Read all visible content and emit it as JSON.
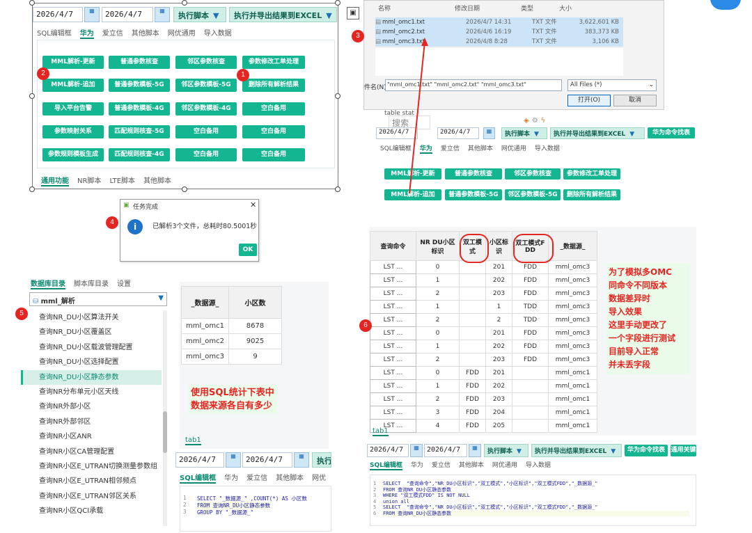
{
  "colors": {
    "accent": "#14b692",
    "badge": "#e52521",
    "note": "#e52521"
  },
  "p1": {
    "date_from": "2026/4/7",
    "date_to": "2026/4/7",
    "exec_label": "执行脚本",
    "export_label": "执行并导出结果到EXCEL",
    "tabs": [
      "SQL编辑框",
      "华为",
      "爱立信",
      "其他脚本",
      "网优通用",
      "导入数据"
    ],
    "buttons": [
      "MML解析-更新",
      "普通参数核查",
      "邻区参数核查",
      "参数修改工单处理",
      "MML解析-追加",
      "普通参数模板-5G",
      "邻区参数模板-5G",
      "删除所有解析结果",
      "导入平台告警",
      "普通参数模板-4G",
      "邻区参数模板-4G",
      "空白备用",
      "参数映射关系",
      "匹配规则核查-5G",
      "空白备用",
      "空白备用",
      "参数规则模板生成",
      "匹配规则核查-4G",
      "空白备用",
      "空白备用"
    ],
    "bottom_tabs": [
      "通用功能",
      "NR脚本",
      "LTE脚本",
      "其他脚本"
    ]
  },
  "badges": [
    "1",
    "2",
    "3",
    "4",
    "5",
    "6"
  ],
  "p3": {
    "headers": [
      "名称",
      "修改日期",
      "类型",
      "大小"
    ],
    "files": [
      {
        "name": "mml_omc1.txt",
        "date": "2026/4/7 14:31",
        "type": "TXT 文件",
        "size": "3,622,601 KB"
      },
      {
        "name": "mml_omc2.txt",
        "date": "2026/4/6 16:19",
        "type": "TXT 文件",
        "size": "383,373 KB"
      },
      {
        "name": "mml_omc3.txt",
        "date": "2026/4/8 8:28",
        "type": "TXT 文件",
        "size": "3,106 KB"
      }
    ],
    "filename_label": "件名(N):",
    "filename_value": "\"mml_omc1.txt\" \"mml_omc2.txt\" \"mml_omc3.txt\"",
    "filter_value": "All Files (*)",
    "open_label": "打开(O)",
    "cancel_label": "取消",
    "tablestat": "table stat",
    "search_placeholder": "搜索",
    "date_from": "2026/4/7",
    "date_to": "2026/4/7",
    "exec_label": "执行脚本",
    "export_label": "执行并导出结果到EXCEL",
    "huawei_find": "华为命令找表",
    "tabs": [
      "SQL编辑框",
      "华为",
      "爱立信",
      "其他脚本",
      "网优通用",
      "导入数据"
    ],
    "buttons": [
      "MML解析-更新",
      "普通参数核查",
      "邻区参数核查",
      "参数修改工单处理",
      "MML解析-追加",
      "普通参数模板-5G",
      "邻区参数模板-5G",
      "删除所有解析结果"
    ]
  },
  "p4": {
    "title": "任务完成",
    "message": "已解析3个文件，总耗时80.5001秒",
    "ok": "OK"
  },
  "p5": {
    "tabs": [
      "数据库目录",
      "脚本库目录",
      "设置"
    ],
    "db_name": "mml_解析",
    "items": [
      "查询NR_DU小区算法开关",
      "查询NR_DU小区覆盖区",
      "查询NR_DU小区载波管理配置",
      "查询NR_DU小区选择配置",
      "查询NR_DU小区静态参数",
      "查询NR分布单元小区天线",
      "查询NR外部小区",
      "查询NR外部邻区",
      "查询NR小区ANR",
      "查询NR小区CA管理配置",
      "查询NR小区E_UTRAN切换测量参数组",
      "查询NR小区E_UTRAN相邻频点",
      "查询NR小区E_UTRAN邻区关系",
      "查询NR小区QCI承载"
    ],
    "table_headers": [
      "_数据源_",
      "小区数"
    ],
    "rows": [
      [
        "mml_omc1",
        "8678"
      ],
      [
        "mml_omc2",
        "9025"
      ],
      [
        "mml_omc3",
        "9"
      ]
    ],
    "note": "使用SQL统计下表中\n数据来源各自有多少",
    "tab1": "tab1",
    "date_from": "2026/4/7",
    "date_to": "2026/4/7",
    "exec_label": "执行",
    "editor_tabs": [
      "SQL编辑框",
      "华为",
      "爱立信",
      "其他脚本",
      "网优"
    ],
    "code": [
      "SELECT \"_数据源_\" ,COUNT(*) AS 小区数",
      "FROM 查询NR_DU小区静态参数",
      "GROUP BY \"_数据源_\""
    ]
  },
  "p6": {
    "headers": [
      "查询命令",
      "NR DU小区\n标识",
      "双工模\n式",
      "小区标\n识",
      "双工模式F\nDD",
      "_数据源_"
    ],
    "rows": [
      [
        "LST ...",
        "0",
        "",
        "201",
        "FDD",
        "mml_omc3"
      ],
      [
        "LST ...",
        "1",
        "",
        "202",
        "FDD",
        "mml_omc3"
      ],
      [
        "LST ...",
        "2",
        "",
        "203",
        "FDD",
        "mml_omc3"
      ],
      [
        "LST ...",
        "1",
        "",
        "1",
        "TDD",
        "mml_omc3"
      ],
      [
        "LST ...",
        "2",
        "",
        "2",
        "TDD",
        "mml_omc3"
      ],
      [
        "LST ...",
        "0",
        "",
        "201",
        "FDD",
        "mml_omc3"
      ],
      [
        "LST ...",
        "1",
        "",
        "202",
        "FDD",
        "mml_omc3"
      ],
      [
        "LST ...",
        "2",
        "",
        "203",
        "FDD",
        "mml_omc3"
      ],
      [
        "LST ...",
        "0",
        "FDD",
        "201",
        "",
        "mml_omc1"
      ],
      [
        "LST ...",
        "1",
        "FDD",
        "202",
        "",
        "mml_omc1"
      ],
      [
        "LST ...",
        "2",
        "FDD",
        "203",
        "",
        "mml_omc1"
      ],
      [
        "LST ...",
        "3",
        "FDD",
        "204",
        "",
        "mml_omc1"
      ],
      [
        "LST ...",
        "4",
        "FDD",
        "205",
        "",
        "mml_omc1"
      ]
    ],
    "note": "为了模拟多OMC\n同命令不同版本\n数据差异时\n导入效果\n这里手动更改了\n一个字段进行测试\n目前导入正常\n并未丢字段",
    "tab1": "tab1",
    "date_from": "2026/4/7",
    "date_to": "2026/4/7",
    "exec_label": "执行脚本",
    "export_label": "执行并导出结果到EXCEL",
    "huawei_find": "华为命令找表",
    "common_label": "通用关键",
    "tabs": [
      "SQL编辑框",
      "华为",
      "爱立信",
      "其他脚本",
      "网优通用",
      "导入数据"
    ],
    "code": [
      "SELECT  \"查询命令\",\"NR DU小区标识\",\"双工模式\",\"小区标识\",\"双工模式FDD\",\"_数据源_\"",
      "FROM 查询NR_DU小区静态参数",
      "WHERE \"双工模式FDD\" IS NOT NULL",
      "union all",
      "SELECT  \"查询命令\",\"NR DU小区标识\",\"双工模式\",\"小区标识\",\"双工模式FDD\",\"_数据源_\"",
      "FROM 查询NR_DU小区静态参数"
    ]
  }
}
